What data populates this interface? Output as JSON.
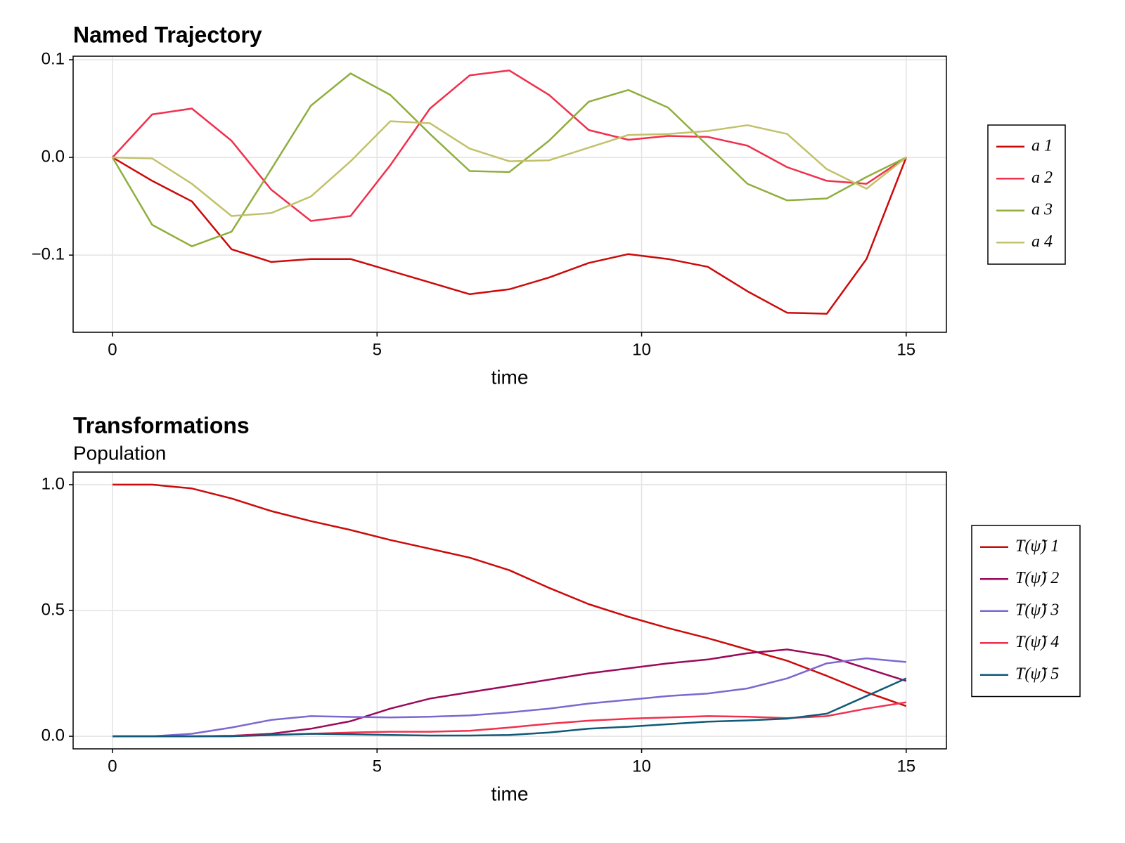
{
  "chart_data": [
    {
      "type": "line",
      "title": "Named Trajectory",
      "xlabel": "time",
      "x": [
        0,
        0.75,
        1.5,
        2.25,
        3,
        3.75,
        4.5,
        5.25,
        6,
        6.75,
        7.5,
        8.25,
        9,
        9.75,
        10.5,
        11.25,
        12,
        12.75,
        13.5,
        14.25,
        15
      ],
      "series": [
        {
          "name": "a 1",
          "color": "#cc0a0a",
          "values": [
            0,
            -0.024,
            -0.045,
            -0.094,
            -0.107,
            -0.104,
            -0.104,
            -0.116,
            -0.128,
            -0.14,
            -0.135,
            -0.123,
            -0.108,
            -0.099,
            -0.104,
            -0.112,
            -0.137,
            -0.159,
            -0.16,
            -0.104,
            0
          ]
        },
        {
          "name": "a 2",
          "color": "#f0304c",
          "values": [
            0,
            0.044,
            0.05,
            0.017,
            -0.033,
            -0.065,
            -0.06,
            -0.008,
            0.05,
            0.084,
            0.089,
            0.064,
            0.028,
            0.018,
            0.022,
            0.021,
            0.012,
            -0.01,
            -0.024,
            -0.027,
            0
          ]
        },
        {
          "name": "a 3",
          "color": "#8fae3e",
          "values": [
            0,
            -0.069,
            -0.091,
            -0.076,
            -0.012,
            0.053,
            0.086,
            0.064,
            0.024,
            -0.014,
            -0.015,
            0.017,
            0.057,
            0.069,
            0.051,
            0.012,
            -0.027,
            -0.044,
            -0.042,
            -0.02,
            0
          ]
        },
        {
          "name": "a 4",
          "color": "#c2c16a",
          "values": [
            0,
            -0.001,
            -0.027,
            -0.06,
            -0.057,
            -0.04,
            -0.004,
            0.037,
            0.035,
            0.009,
            -0.004,
            -0.003,
            0.01,
            0.023,
            0.024,
            0.027,
            0.033,
            0.024,
            -0.012,
            -0.032,
            0
          ]
        }
      ],
      "xlim": [
        -0.744,
        15.76
      ],
      "ylim": [
        -0.179,
        0.1036
      ],
      "xticks": [
        0,
        5,
        10,
        15
      ],
      "yticks": [
        {
          "value": -0.1,
          "label": "−0.1"
        },
        {
          "value": 0,
          "label": "0.0"
        },
        0.1
      ],
      "grid": true,
      "legend": "right"
    },
    {
      "type": "line",
      "title": "Transformations",
      "subtitle": "Population",
      "xlabel": "time",
      "x": [
        0,
        0.75,
        1.5,
        2.25,
        3,
        3.75,
        4.5,
        5.25,
        6,
        6.75,
        7.5,
        8.25,
        9,
        9.75,
        10.5,
        11.25,
        12,
        12.75,
        13.5,
        14.25,
        15
      ],
      "series": [
        {
          "name": "T(ψ̃) 1",
          "color": "#cc0a0a",
          "values": [
            1.0,
            1.0,
            0.985,
            0.945,
            0.895,
            0.855,
            0.82,
            0.78,
            0.745,
            0.71,
            0.66,
            0.59,
            0.525,
            0.475,
            0.43,
            0.39,
            0.345,
            0.3,
            0.24,
            0.175,
            0.12
          ]
        },
        {
          "name": "T(ψ̃) 2",
          "color": "#9a0a5a",
          "values": [
            0,
            0,
            0,
            0.002,
            0.01,
            0.03,
            0.06,
            0.11,
            0.15,
            0.175,
            0.2,
            0.225,
            0.25,
            0.27,
            0.29,
            0.305,
            0.33,
            0.345,
            0.32,
            0.27,
            0.22
          ]
        },
        {
          "name": "T(ψ̃) 3",
          "color": "#7b68d0",
          "values": [
            0,
            0,
            0.01,
            0.035,
            0.065,
            0.08,
            0.077,
            0.075,
            0.078,
            0.083,
            0.095,
            0.11,
            0.13,
            0.145,
            0.16,
            0.17,
            0.19,
            0.23,
            0.29,
            0.31,
            0.295
          ]
        },
        {
          "name": "T(ψ̃) 4",
          "color": "#f0304c",
          "values": [
            0,
            0,
            0,
            0.002,
            0.005,
            0.01,
            0.015,
            0.018,
            0.018,
            0.022,
            0.035,
            0.05,
            0.062,
            0.07,
            0.075,
            0.08,
            0.078,
            0.072,
            0.08,
            0.11,
            0.135
          ]
        },
        {
          "name": "T(ψ̃) 5",
          "color": "#0f5a78",
          "values": [
            0,
            0,
            0,
            0,
            0.005,
            0.01,
            0.008,
            0.005,
            0.003,
            0.003,
            0.005,
            0.015,
            0.03,
            0.038,
            0.048,
            0.058,
            0.063,
            0.07,
            0.09,
            0.16,
            0.23
          ]
        }
      ],
      "xlim": [
        -0.744,
        15.76
      ],
      "ylim": [
        -0.05,
        1.05
      ],
      "xticks": [
        0,
        5,
        10,
        15
      ],
      "yticks": [
        {
          "value": 0,
          "label": "0.0"
        },
        0.5,
        {
          "value": 1,
          "label": "1.0"
        }
      ],
      "grid": true,
      "legend": "right"
    }
  ]
}
